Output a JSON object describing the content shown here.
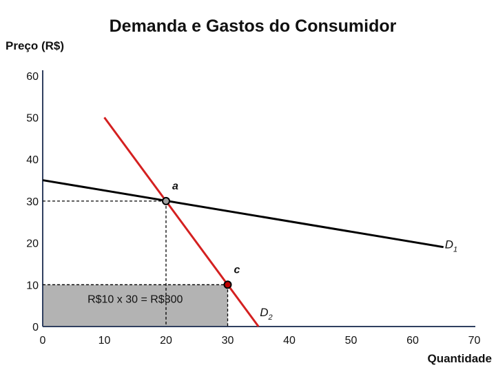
{
  "chart_data": {
    "type": "line",
    "title": "Demanda e Gastos do Consumidor",
    "ylabel": "Preço (R$)",
    "xlabel": "Quantidade",
    "xlim": [
      0,
      70
    ],
    "ylim": [
      0,
      60
    ],
    "x_ticks": [
      0,
      10,
      20,
      30,
      40,
      50,
      60,
      70
    ],
    "y_ticks": [
      0,
      10,
      20,
      30,
      40,
      50,
      60
    ],
    "series": [
      {
        "name": "D1",
        "label_main": "D",
        "label_sub": "1",
        "color": "#000000",
        "points": [
          [
            0,
            35
          ],
          [
            65,
            19
          ]
        ]
      },
      {
        "name": "D2",
        "label_main": "D",
        "label_sub": "2",
        "color": "#d42020",
        "points": [
          [
            10,
            50
          ],
          [
            35,
            0
          ]
        ]
      }
    ],
    "points": [
      {
        "label": "a",
        "x": 20,
        "y": 30,
        "fill": "#a0a0a0"
      },
      {
        "label": "c",
        "x": 30,
        "y": 10,
        "fill": "#c00000"
      }
    ],
    "shaded_area": {
      "x": [
        0,
        30
      ],
      "y": [
        0,
        10
      ],
      "color": "#b3b3b3",
      "label": "R$10 x 30 = R$300"
    },
    "grid": false
  }
}
